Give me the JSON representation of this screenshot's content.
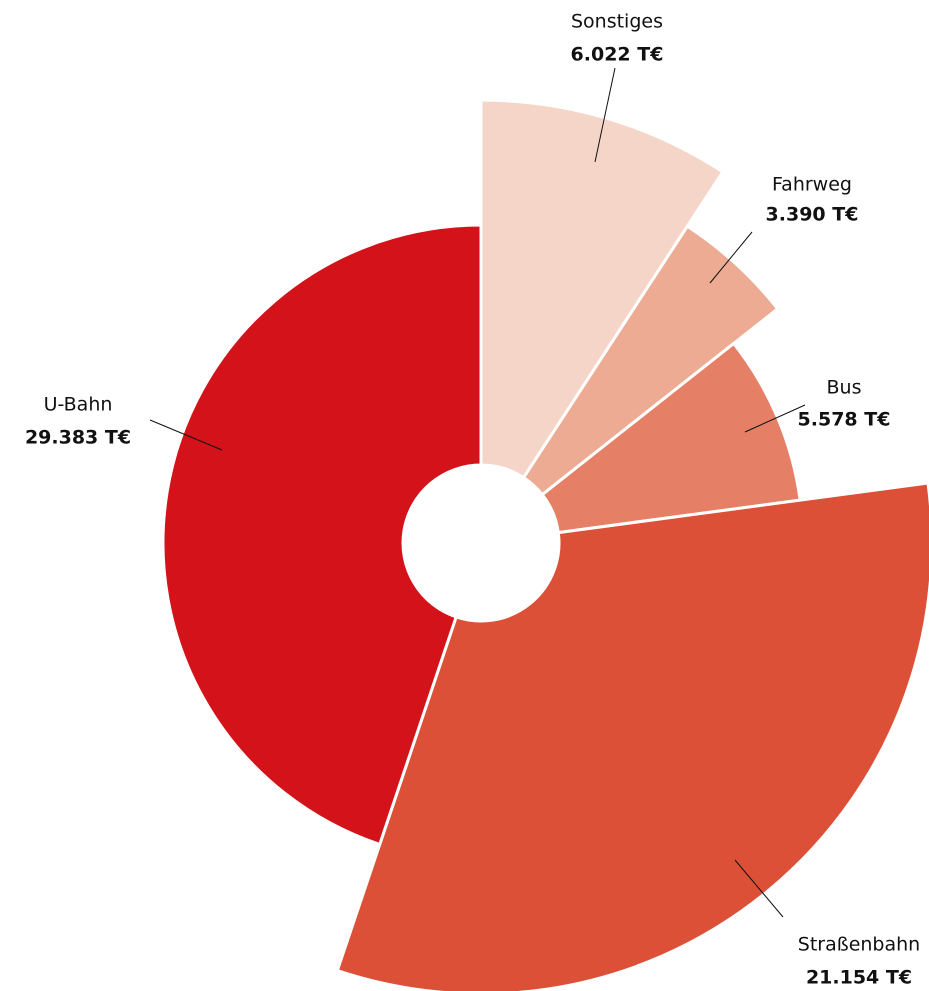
{
  "chart_data": {
    "type": "pie",
    "categories": [
      "Sonstiges",
      "Fahrweg",
      "Bus",
      "Straßenbahn",
      "U-Bahn"
    ],
    "values": [
      6022,
      3390,
      5578,
      21154,
      29383
    ],
    "value_labels": [
      "6.022 T€",
      "3.390 T€",
      "5.578 T€",
      "21.154 T€",
      "29.383 T€"
    ],
    "colors": [
      "#f6d5c9",
      "#eeab94",
      "#e58066",
      "#db5037",
      "#d31219"
    ]
  }
}
